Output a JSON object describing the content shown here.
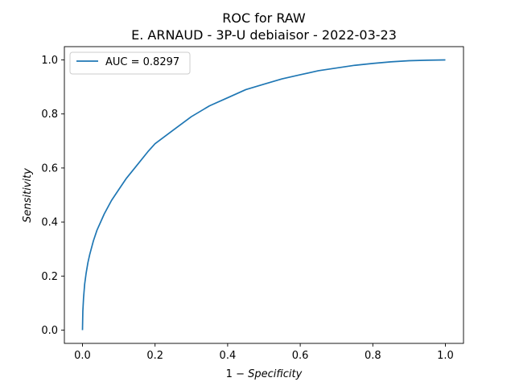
{
  "chart_data": {
    "type": "line",
    "title": "ROC for RAW",
    "subtitle": "E. ARNAUD - 3P-U debiaisor - 2022-03-23",
    "xlabel": "1 − Specificity",
    "xlabel_parts": {
      "prefix": "1 − ",
      "italic": "Specificity"
    },
    "ylabel": "Sensitivity",
    "xlim": [
      0.0,
      1.0
    ],
    "ylim": [
      0.0,
      1.0
    ],
    "xticks": [
      "0.0",
      "0.2",
      "0.4",
      "0.6",
      "0.8",
      "1.0"
    ],
    "yticks": [
      "0.0",
      "0.2",
      "0.4",
      "0.6",
      "0.8",
      "1.0"
    ],
    "grid": false,
    "legend_position": "top-left",
    "series": [
      {
        "name": "AUC = 0.8297",
        "color": "#1f77b4",
        "x": [
          0.0,
          0.001,
          0.003,
          0.006,
          0.01,
          0.015,
          0.02,
          0.03,
          0.04,
          0.05,
          0.06,
          0.08,
          0.1,
          0.12,
          0.15,
          0.18,
          0.2,
          0.25,
          0.3,
          0.35,
          0.4,
          0.45,
          0.5,
          0.55,
          0.6,
          0.65,
          0.7,
          0.75,
          0.8,
          0.85,
          0.9,
          0.95,
          1.0
        ],
        "y": [
          0.0,
          0.07,
          0.12,
          0.17,
          0.21,
          0.25,
          0.28,
          0.33,
          0.37,
          0.4,
          0.43,
          0.48,
          0.52,
          0.56,
          0.61,
          0.66,
          0.69,
          0.74,
          0.79,
          0.83,
          0.86,
          0.89,
          0.91,
          0.93,
          0.945,
          0.96,
          0.97,
          0.98,
          0.987,
          0.993,
          0.997,
          0.999,
          1.0
        ]
      }
    ]
  }
}
